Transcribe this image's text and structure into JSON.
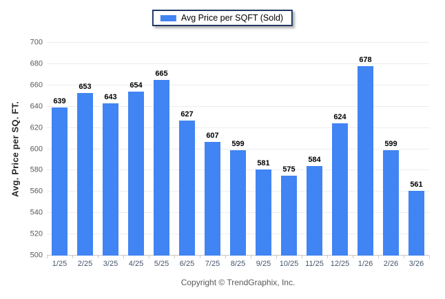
{
  "legend": {
    "label": "Avg Price per SQFT (Sold)",
    "swatch_color": "#4184f3",
    "border_color": "#1f3864"
  },
  "footer": {
    "copyright": "Copyright © TrendGraphix, Inc."
  },
  "colors": {
    "bar": "#4184f3",
    "gridline": "#ececec",
    "axis_line": "#c6c6c6",
    "x_tick_text": "#44546a",
    "y_tick_text": "#595959"
  },
  "chart_data": {
    "type": "bar",
    "title": "",
    "series_name": "Avg Price per SQFT (Sold)",
    "categories": [
      "1/25",
      "2/25",
      "3/25",
      "4/25",
      "5/25",
      "6/25",
      "7/25",
      "8/25",
      "9/25",
      "10/25",
      "11/25",
      "12/25",
      "1/26",
      "2/26",
      "3/26"
    ],
    "values": [
      639,
      653,
      643,
      654,
      665,
      627,
      607,
      599,
      581,
      575,
      584,
      624,
      678,
      599,
      561
    ],
    "value_labels": true,
    "xlabel": "",
    "ylabel": "Avg. Price per SQ. FT.",
    "ylim": [
      500,
      700
    ],
    "ytick_step": 20,
    "yticks": [
      500,
      520,
      540,
      560,
      580,
      600,
      620,
      640,
      660,
      680,
      700
    ],
    "grid": "horizontal",
    "legend_position": "top-center",
    "bar_color": "#4184f3"
  }
}
